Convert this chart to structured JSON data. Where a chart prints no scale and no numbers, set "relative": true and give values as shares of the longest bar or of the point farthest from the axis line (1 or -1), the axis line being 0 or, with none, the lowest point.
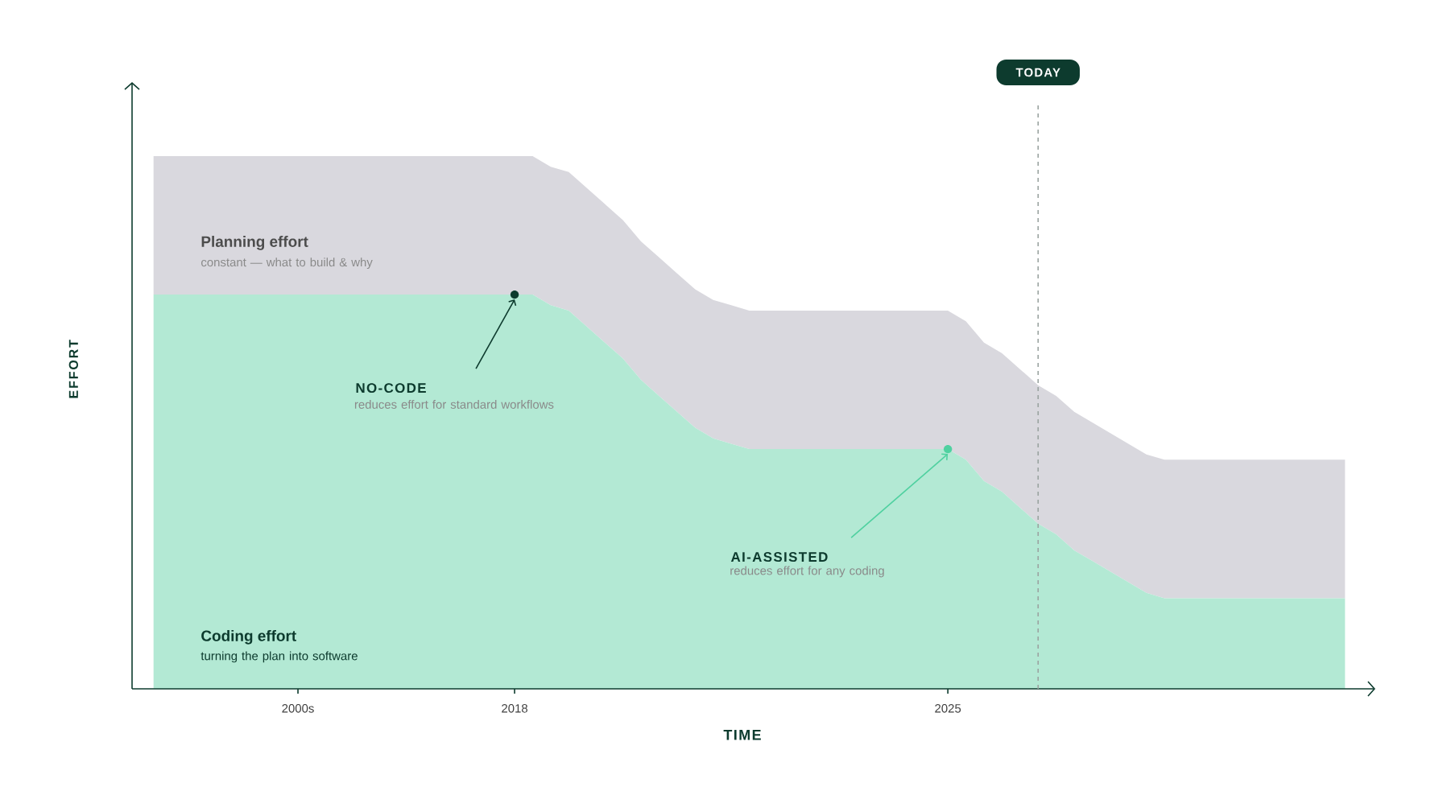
{
  "chart_data": {
    "type": "area",
    "relative": true,
    "stacked": true,
    "legend": false,
    "marker": "none",
    "xlabel": "TIME",
    "ylabel": "EFFORT",
    "categories": [
      null,
      null,
      null,
      null,
      null,
      null,
      null,
      null,
      "2000s",
      null,
      null,
      null,
      null,
      null,
      null,
      null,
      null,
      null,
      null,
      null,
      "2018",
      null,
      null,
      null,
      null,
      null,
      null,
      null,
      null,
      null,
      null,
      null,
      null,
      null,
      null,
      null,
      null,
      null,
      null,
      null,
      null,
      null,
      null,
      null,
      "2025",
      null,
      null,
      null,
      null,
      null,
      null,
      null,
      null,
      null,
      null,
      null,
      null,
      null,
      null,
      null,
      null,
      null,
      null,
      null,
      null,
      null,
      null
    ],
    "series": [
      {
        "name": "Coding effort",
        "color": "#b3e9d4",
        "values": [
          0.74,
          0.74,
          0.74,
          0.74,
          0.74,
          0.74,
          0.74,
          0.74,
          0.74,
          0.74,
          0.74,
          0.74,
          0.74,
          0.74,
          0.74,
          0.74,
          0.74,
          0.74,
          0.74,
          0.74,
          0.74,
          0.74,
          0.72,
          0.71,
          0.68,
          0.65,
          0.62,
          0.58,
          0.55,
          0.52,
          0.49,
          0.47,
          0.46,
          0.45,
          0.45,
          0.45,
          0.45,
          0.45,
          0.45,
          0.45,
          0.45,
          0.45,
          0.45,
          0.45,
          0.45,
          0.43,
          0.39,
          0.37,
          0.34,
          0.31,
          0.29,
          0.26,
          0.24,
          0.22,
          0.2,
          0.18,
          0.17,
          0.17,
          0.17,
          0.17,
          0.17,
          0.17,
          0.17,
          0.17,
          0.17,
          0.17,
          0.17
        ]
      },
      {
        "name": "Planning effort",
        "color": "#d9d8de",
        "values": [
          0.26,
          0.26,
          0.26,
          0.26,
          0.26,
          0.26,
          0.26,
          0.26,
          0.26,
          0.26,
          0.26,
          0.26,
          0.26,
          0.26,
          0.26,
          0.26,
          0.26,
          0.26,
          0.26,
          0.26,
          0.26,
          0.26,
          0.26,
          0.26,
          0.26,
          0.26,
          0.26,
          0.26,
          0.26,
          0.26,
          0.26,
          0.26,
          0.26,
          0.26,
          0.26,
          0.26,
          0.26,
          0.26,
          0.26,
          0.26,
          0.26,
          0.26,
          0.26,
          0.26,
          0.26,
          0.26,
          0.26,
          0.26,
          0.26,
          0.26,
          0.26,
          0.26,
          0.26,
          0.26,
          0.26,
          0.26,
          0.26,
          0.26,
          0.26,
          0.26,
          0.26,
          0.26,
          0.26,
          0.26,
          0.26,
          0.26,
          0.26
        ]
      }
    ],
    "annotations": [
      "NO-CODE",
      "reduces effort for standard workflows",
      "AI-ASSISTED",
      "reduces effort for any coding",
      "turning the plan into software",
      "constant — what to build & why",
      "TODAY"
    ]
  }
}
